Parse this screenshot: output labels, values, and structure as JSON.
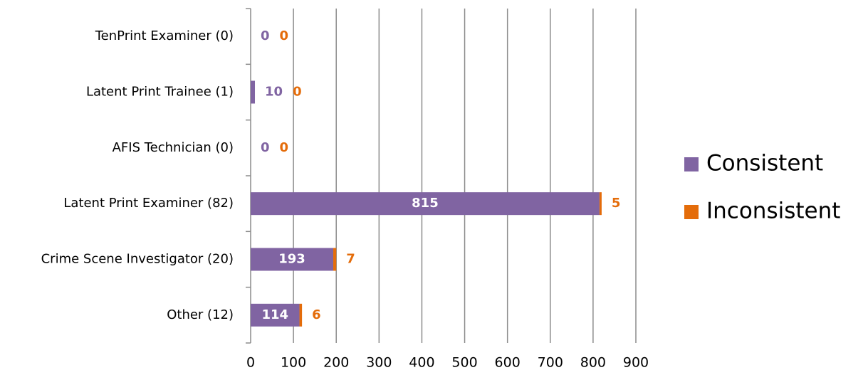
{
  "chart_data": {
    "type": "stacked_bar_horizontal",
    "categories": [
      "TenPrint Examiner (0)",
      "Latent Print Trainee (1)",
      "AFIS Technician (0)",
      "Latent Print Examiner (82)",
      "Crime Scene Investigator (20)",
      "Other (12)"
    ],
    "series": [
      {
        "name": "Consistent",
        "color": "#8064a2",
        "values": [
          0,
          10,
          0,
          815,
          193,
          114
        ]
      },
      {
        "name": "Inconsistent",
        "color": "#e46c0a",
        "values": [
          0,
          0,
          0,
          5,
          7,
          6
        ]
      }
    ],
    "xlim": [
      0,
      900
    ],
    "xticks": [
      0,
      100,
      200,
      300,
      400,
      500,
      600,
      700,
      800,
      900
    ],
    "grid": true,
    "legend": "right"
  }
}
